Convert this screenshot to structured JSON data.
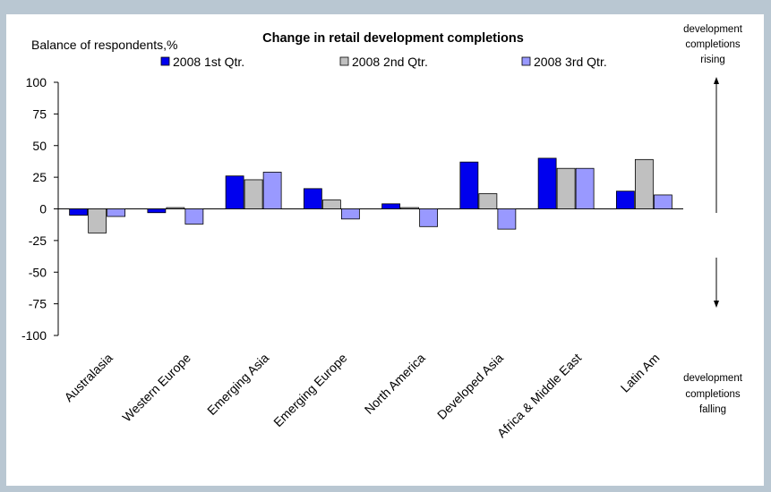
{
  "chart_data": {
    "type": "bar",
    "title": "Change in retail development completions",
    "ylabel": "Balance of respondents,%",
    "xlabel": "",
    "ylim": [
      -100,
      100
    ],
    "yticks": [
      100,
      75,
      50,
      25,
      0,
      -25,
      -50,
      -75,
      -100
    ],
    "grid": false,
    "legend": "top",
    "categories": [
      "Australasia",
      "Western Europe",
      "Emerging Asia",
      "Emerging Europe",
      "North America",
      "Developed Asia",
      "Africa & Middle East",
      "Latin Am"
    ],
    "series": [
      {
        "name": "2008 1st Qtr.",
        "color": "#0000ee",
        "values": [
          -5,
          -3,
          26,
          16,
          4,
          37,
          40,
          14
        ]
      },
      {
        "name": "2008 2nd Qtr.",
        "color": "#c0c0c0",
        "values": [
          -19,
          1,
          23,
          7,
          1,
          12,
          32,
          39
        ]
      },
      {
        "name": "2008 3rd Qtr.",
        "color": "#9999ff",
        "values": [
          -6,
          -12,
          29,
          -8,
          -14,
          -16,
          32,
          11
        ]
      }
    ]
  },
  "annotations": {
    "rising": [
      "development",
      "completions",
      "rising"
    ],
    "falling": [
      "development",
      "completions",
      "falling"
    ]
  }
}
